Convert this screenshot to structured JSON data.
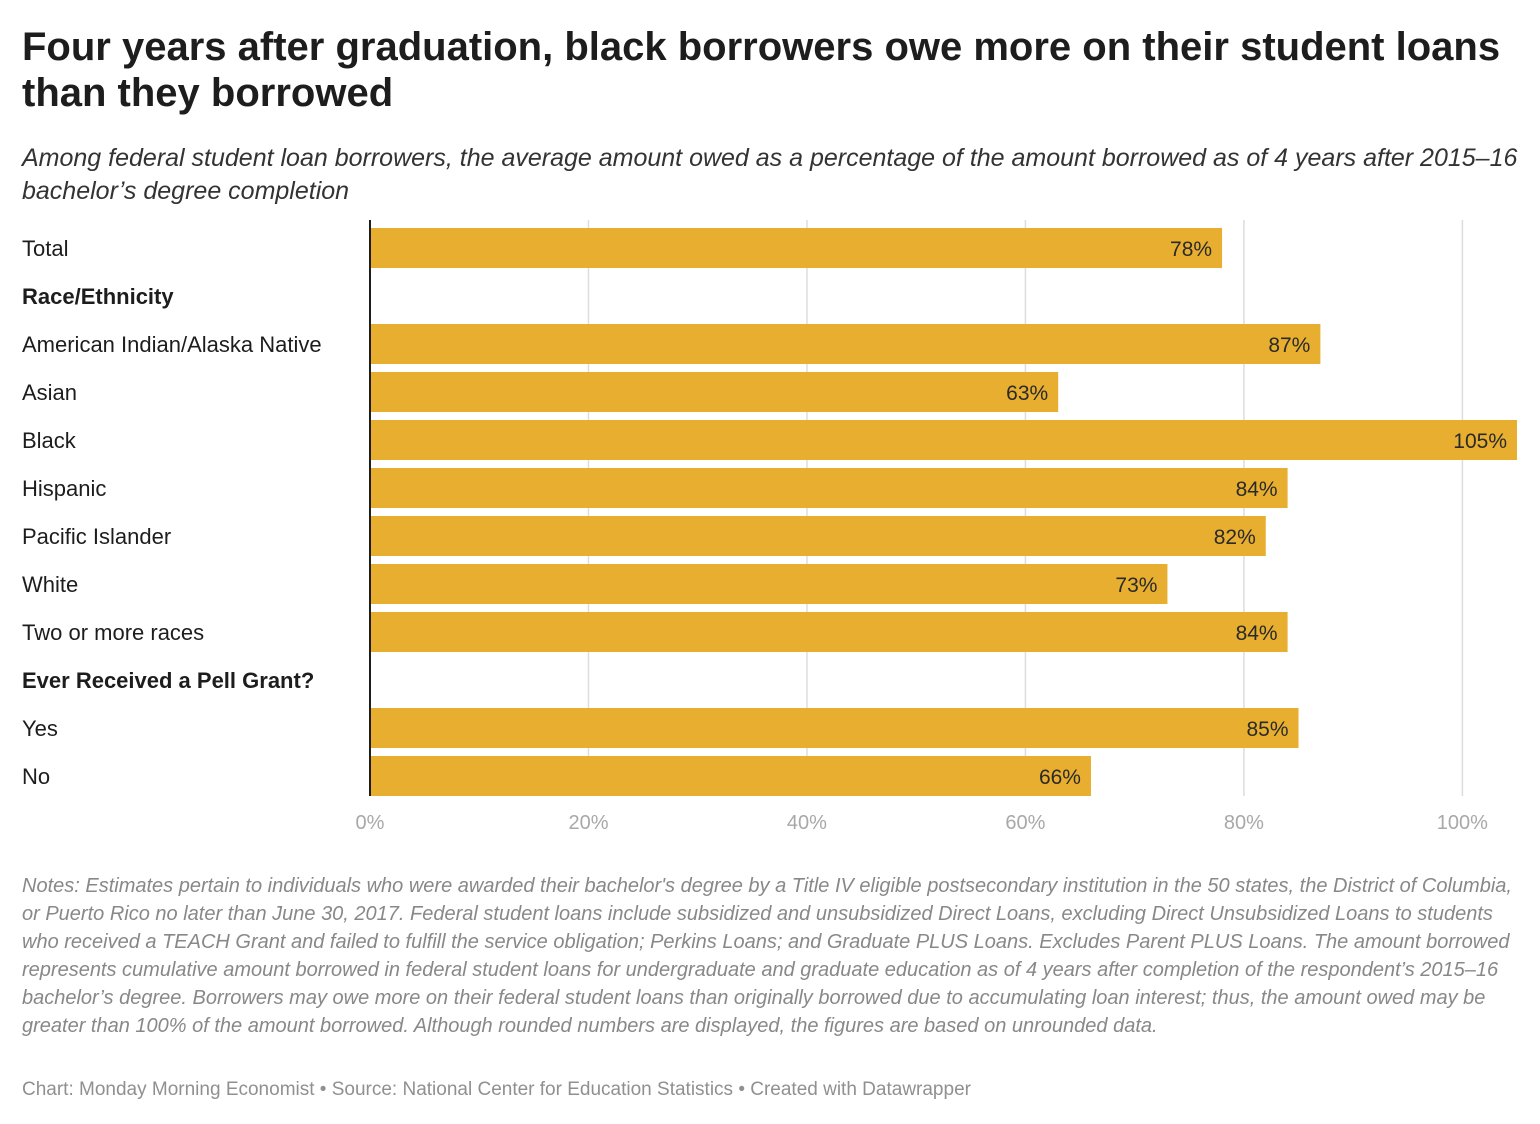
{
  "title": "Four years after graduation, black borrowers owe more on their student loans than they borrowed",
  "subtitle": "Among federal student loan borrowers, the average amount owed as a percentage of the amount borrowed as of 4 years after 2015–16 bachelor’s degree completion",
  "notes": "Notes: Estimates pertain to individuals who were awarded their bachelor's degree by a Title IV eligible postsecondary institution in the 50 states, the District of Columbia, or Puerto Rico no later than June 30, 2017. Federal student loans include subsidized and unsubsidized Direct Loans, excluding Direct Unsubsidized Loans to students who received a TEACH Grant and failed to fulfill the service obligation; Perkins Loans; and Graduate PLUS Loans. Excludes Parent PLUS Loans. The amount borrowed represents cumulative amount borrowed in federal student loans for undergraduate and graduate education as of 4 years after completion of the respondent’s 2015–16 bachelor’s degree. Borrowers may owe more on their federal student loans than originally borrowed due to accumulating loan interest; thus, the amount owed may be greater than 100% of the amount borrowed. Although rounded numbers are displayed, the figures are based on unrounded data.",
  "footer": "Chart: Monday Morning Economist • Source: National Center for Education Statistics • Created with Datawrapper",
  "chart_data": {
    "type": "bar",
    "orientation": "horizontal",
    "bar_color": "#e8ae30",
    "rows": [
      {
        "label": "Total",
        "value": 78,
        "display": "78%"
      },
      {
        "label": "Race/Ethnicity",
        "header": true
      },
      {
        "label": "American Indian/Alaska Native",
        "value": 87,
        "display": "87%"
      },
      {
        "label": "Asian",
        "value": 63,
        "display": "63%"
      },
      {
        "label": "Black",
        "value": 105,
        "display": "105%"
      },
      {
        "label": "Hispanic",
        "value": 84,
        "display": "84%"
      },
      {
        "label": "Pacific Islander",
        "value": 82,
        "display": "82%"
      },
      {
        "label": "White",
        "value": 73,
        "display": "73%"
      },
      {
        "label": "Two or more races",
        "value": 84,
        "display": "84%"
      },
      {
        "label": "Ever Received a Pell Grant?",
        "header": true
      },
      {
        "label": "Yes",
        "value": 85,
        "display": "85%"
      },
      {
        "label": "No",
        "value": 66,
        "display": "66%"
      }
    ],
    "xlim": [
      0,
      105
    ],
    "ticks": [
      0,
      20,
      40,
      60,
      80,
      100
    ],
    "tick_labels": [
      "0%",
      "20%",
      "40%",
      "60%",
      "80%",
      "100%"
    ],
    "grid": true
  }
}
